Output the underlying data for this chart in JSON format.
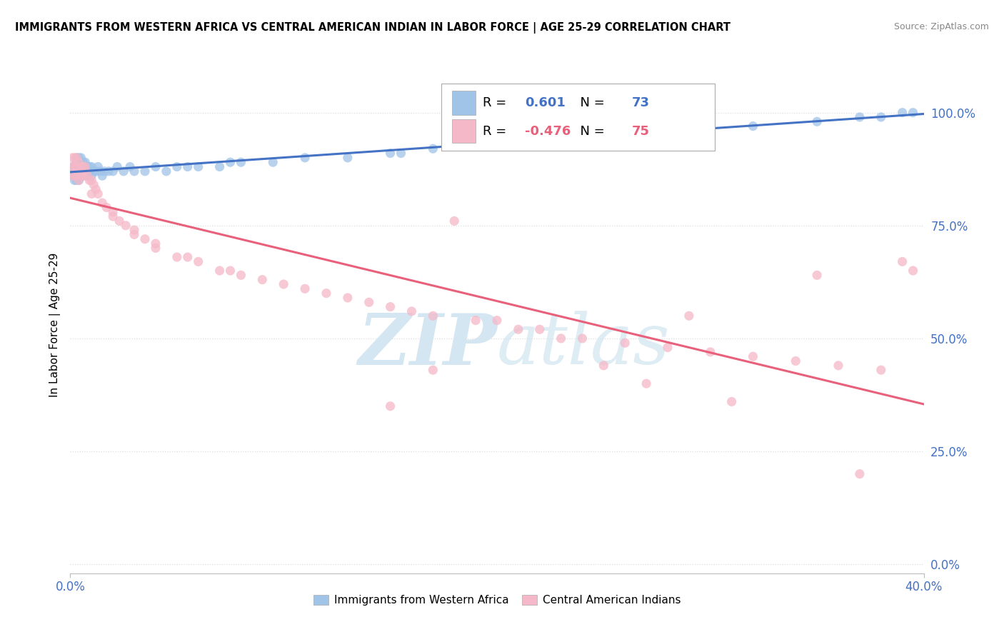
{
  "title": "IMMIGRANTS FROM WESTERN AFRICA VS CENTRAL AMERICAN INDIAN IN LABOR FORCE | AGE 25-29 CORRELATION CHART",
  "source": "Source: ZipAtlas.com",
  "ylabel": "In Labor Force | Age 25-29",
  "xlim": [
    0.0,
    0.4
  ],
  "ylim": [
    -0.02,
    1.08
  ],
  "ytick_values": [
    0.0,
    0.25,
    0.5,
    0.75,
    1.0
  ],
  "ytick_labels": [
    "0.0%",
    "25.0%",
    "50.0%",
    "75.0%",
    "100.0%"
  ],
  "xtick_values": [
    0.0,
    0.4
  ],
  "xtick_labels": [
    "0.0%",
    "40.0%"
  ],
  "legend_blue_label": "Immigrants from Western Africa",
  "legend_pink_label": "Central American Indians",
  "R_blue": 0.601,
  "N_blue": 73,
  "R_pink": -0.476,
  "N_pink": 75,
  "blue_dot_color": "#a0c4e8",
  "pink_dot_color": "#f5b8c8",
  "blue_line_color": "#4472c4",
  "pink_line_color": "#e8607a",
  "axis_label_color": "#4472c4",
  "background_color": "#ffffff",
  "grid_color": "#dddddd",
  "watermark_color": "#d0e4f0",
  "blue_scatter_x": [
    0.001,
    0.001,
    0.001,
    0.002,
    0.002,
    0.002,
    0.002,
    0.003,
    0.003,
    0.003,
    0.003,
    0.003,
    0.004,
    0.004,
    0.004,
    0.004,
    0.004,
    0.005,
    0.005,
    0.005,
    0.005,
    0.006,
    0.006,
    0.006,
    0.006,
    0.007,
    0.007,
    0.007,
    0.008,
    0.008,
    0.008,
    0.009,
    0.009,
    0.01,
    0.01,
    0.011,
    0.012,
    0.013,
    0.014,
    0.015,
    0.016,
    0.018,
    0.02,
    0.022,
    0.025,
    0.028,
    0.03,
    0.035,
    0.04,
    0.045,
    0.05,
    0.06,
    0.07,
    0.08,
    0.095,
    0.11,
    0.13,
    0.15,
    0.17,
    0.2,
    0.23,
    0.26,
    0.29,
    0.32,
    0.35,
    0.37,
    0.38,
    0.39,
    0.395,
    0.24,
    0.155,
    0.075,
    0.055
  ],
  "blue_scatter_y": [
    0.87,
    0.86,
    0.88,
    0.88,
    0.87,
    0.86,
    0.85,
    0.9,
    0.89,
    0.87,
    0.86,
    0.85,
    0.9,
    0.88,
    0.87,
    0.86,
    0.85,
    0.9,
    0.88,
    0.87,
    0.86,
    0.89,
    0.88,
    0.87,
    0.86,
    0.89,
    0.88,
    0.87,
    0.88,
    0.87,
    0.86,
    0.88,
    0.87,
    0.88,
    0.86,
    0.87,
    0.87,
    0.88,
    0.87,
    0.86,
    0.87,
    0.87,
    0.87,
    0.88,
    0.87,
    0.88,
    0.87,
    0.87,
    0.88,
    0.87,
    0.88,
    0.88,
    0.88,
    0.89,
    0.89,
    0.9,
    0.9,
    0.91,
    0.92,
    0.93,
    0.94,
    0.95,
    0.97,
    0.97,
    0.98,
    0.99,
    0.99,
    1.0,
    1.0,
    0.96,
    0.91,
    0.89,
    0.88
  ],
  "pink_scatter_x": [
    0.001,
    0.001,
    0.001,
    0.002,
    0.002,
    0.002,
    0.003,
    0.003,
    0.003,
    0.004,
    0.004,
    0.004,
    0.005,
    0.005,
    0.006,
    0.006,
    0.007,
    0.007,
    0.008,
    0.009,
    0.01,
    0.011,
    0.012,
    0.013,
    0.015,
    0.017,
    0.02,
    0.023,
    0.026,
    0.03,
    0.035,
    0.04,
    0.01,
    0.02,
    0.03,
    0.05,
    0.07,
    0.09,
    0.11,
    0.13,
    0.15,
    0.17,
    0.19,
    0.21,
    0.06,
    0.08,
    0.1,
    0.14,
    0.16,
    0.12,
    0.04,
    0.055,
    0.075,
    0.2,
    0.22,
    0.24,
    0.26,
    0.28,
    0.3,
    0.32,
    0.34,
    0.36,
    0.38,
    0.39,
    0.395,
    0.18,
    0.25,
    0.31,
    0.17,
    0.29,
    0.35,
    0.37,
    0.23,
    0.27,
    0.15
  ],
  "pink_scatter_y": [
    0.9,
    0.88,
    0.86,
    0.9,
    0.88,
    0.86,
    0.9,
    0.88,
    0.86,
    0.89,
    0.87,
    0.85,
    0.88,
    0.86,
    0.88,
    0.86,
    0.88,
    0.87,
    0.86,
    0.85,
    0.85,
    0.84,
    0.83,
    0.82,
    0.8,
    0.79,
    0.78,
    0.76,
    0.75,
    0.73,
    0.72,
    0.7,
    0.82,
    0.77,
    0.74,
    0.68,
    0.65,
    0.63,
    0.61,
    0.59,
    0.57,
    0.55,
    0.54,
    0.52,
    0.67,
    0.64,
    0.62,
    0.58,
    0.56,
    0.6,
    0.71,
    0.68,
    0.65,
    0.54,
    0.52,
    0.5,
    0.49,
    0.48,
    0.47,
    0.46,
    0.45,
    0.44,
    0.43,
    0.67,
    0.65,
    0.76,
    0.44,
    0.36,
    0.43,
    0.55,
    0.64,
    0.2,
    0.5,
    0.4,
    0.35
  ]
}
